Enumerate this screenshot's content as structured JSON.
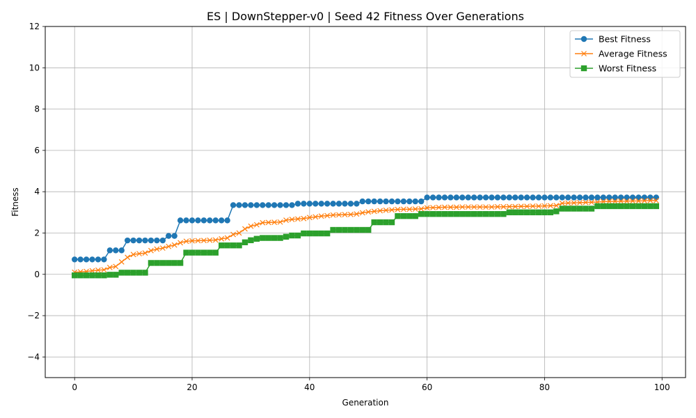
{
  "chart_data": {
    "type": "line",
    "title": "ES | DownStepper-v0 | Seed 42 Fitness Over Generations",
    "xlabel": "Generation",
    "ylabel": "Fitness",
    "xlim": [
      -5,
      104
    ],
    "ylim": [
      -5,
      12
    ],
    "x_ticks": [
      0,
      20,
      40,
      60,
      80,
      100
    ],
    "y_ticks": [
      -4,
      -2,
      0,
      2,
      4,
      6,
      8,
      10,
      12
    ],
    "grid": true,
    "legend_position": "top-right",
    "series": [
      {
        "name": "Best Fitness",
        "color": "#1f77b4",
        "marker": "circle",
        "values": [
          0.72,
          0.72,
          0.72,
          0.72,
          0.72,
          0.72,
          1.16,
          1.16,
          1.16,
          1.64,
          1.64,
          1.64,
          1.64,
          1.64,
          1.64,
          1.64,
          1.86,
          1.86,
          2.61,
          2.61,
          2.61,
          2.61,
          2.61,
          2.61,
          2.61,
          2.61,
          2.61,
          3.35,
          3.35,
          3.35,
          3.35,
          3.35,
          3.35,
          3.35,
          3.35,
          3.35,
          3.35,
          3.35,
          3.42,
          3.42,
          3.42,
          3.42,
          3.42,
          3.42,
          3.42,
          3.42,
          3.42,
          3.42,
          3.42,
          3.53,
          3.53,
          3.53,
          3.53,
          3.53,
          3.53,
          3.53,
          3.53,
          3.53,
          3.53,
          3.53,
          3.72,
          3.72,
          3.72,
          3.72,
          3.72,
          3.72,
          3.72,
          3.72,
          3.72,
          3.72,
          3.72,
          3.72,
          3.72,
          3.72,
          3.72,
          3.72,
          3.72,
          3.72,
          3.72,
          3.72,
          3.72,
          3.72,
          3.72,
          3.72,
          3.72,
          3.72,
          3.72,
          3.72,
          3.72,
          3.72,
          3.72,
          3.72,
          3.72,
          3.72,
          3.72,
          3.72,
          3.72,
          3.72,
          3.72,
          3.72
        ]
      },
      {
        "name": "Average Fitness",
        "color": "#ff7f0e",
        "marker": "x",
        "values": [
          0.1,
          0.12,
          0.14,
          0.17,
          0.2,
          0.22,
          0.33,
          0.38,
          0.6,
          0.82,
          0.96,
          1.0,
          1.03,
          1.15,
          1.22,
          1.27,
          1.35,
          1.42,
          1.53,
          1.6,
          1.62,
          1.63,
          1.64,
          1.65,
          1.66,
          1.72,
          1.76,
          1.93,
          2.0,
          2.2,
          2.33,
          2.4,
          2.5,
          2.51,
          2.52,
          2.53,
          2.62,
          2.66,
          2.68,
          2.7,
          2.75,
          2.78,
          2.82,
          2.84,
          2.87,
          2.88,
          2.89,
          2.9,
          2.92,
          2.98,
          3.02,
          3.05,
          3.08,
          3.1,
          3.12,
          3.14,
          3.15,
          3.15,
          3.16,
          3.17,
          3.22,
          3.23,
          3.24,
          3.25,
          3.25,
          3.25,
          3.26,
          3.26,
          3.26,
          3.26,
          3.26,
          3.26,
          3.27,
          3.27,
          3.28,
          3.28,
          3.29,
          3.29,
          3.3,
          3.3,
          3.31,
          3.32,
          3.33,
          3.44,
          3.45,
          3.46,
          3.47,
          3.48,
          3.49,
          3.5,
          3.52,
          3.53,
          3.53,
          3.54,
          3.54,
          3.55,
          3.55,
          3.56,
          3.57,
          3.57
        ]
      },
      {
        "name": "Worst Fitness",
        "color": "#2ca02c",
        "marker": "square",
        "values": [
          -0.05,
          -0.05,
          -0.05,
          -0.05,
          -0.05,
          -0.05,
          -0.02,
          -0.02,
          0.08,
          0.08,
          0.08,
          0.08,
          0.08,
          0.55,
          0.55,
          0.55,
          0.55,
          0.55,
          0.55,
          1.05,
          1.05,
          1.05,
          1.05,
          1.05,
          1.05,
          1.4,
          1.4,
          1.4,
          1.4,
          1.55,
          1.65,
          1.72,
          1.76,
          1.76,
          1.76,
          1.76,
          1.82,
          1.88,
          1.88,
          1.98,
          1.98,
          1.98,
          1.98,
          1.98,
          2.15,
          2.15,
          2.15,
          2.15,
          2.15,
          2.15,
          2.15,
          2.52,
          2.52,
          2.52,
          2.52,
          2.82,
          2.82,
          2.82,
          2.82,
          2.92,
          2.92,
          2.92,
          2.92,
          2.92,
          2.92,
          2.92,
          2.92,
          2.92,
          2.92,
          2.92,
          2.92,
          2.92,
          2.92,
          2.92,
          3.0,
          3.0,
          3.0,
          3.0,
          3.0,
          3.0,
          3.0,
          3.0,
          3.05,
          3.18,
          3.18,
          3.18,
          3.18,
          3.18,
          3.18,
          3.3,
          3.3,
          3.3,
          3.3,
          3.3,
          3.3,
          3.3,
          3.3,
          3.3,
          3.3,
          3.3
        ]
      }
    ]
  }
}
